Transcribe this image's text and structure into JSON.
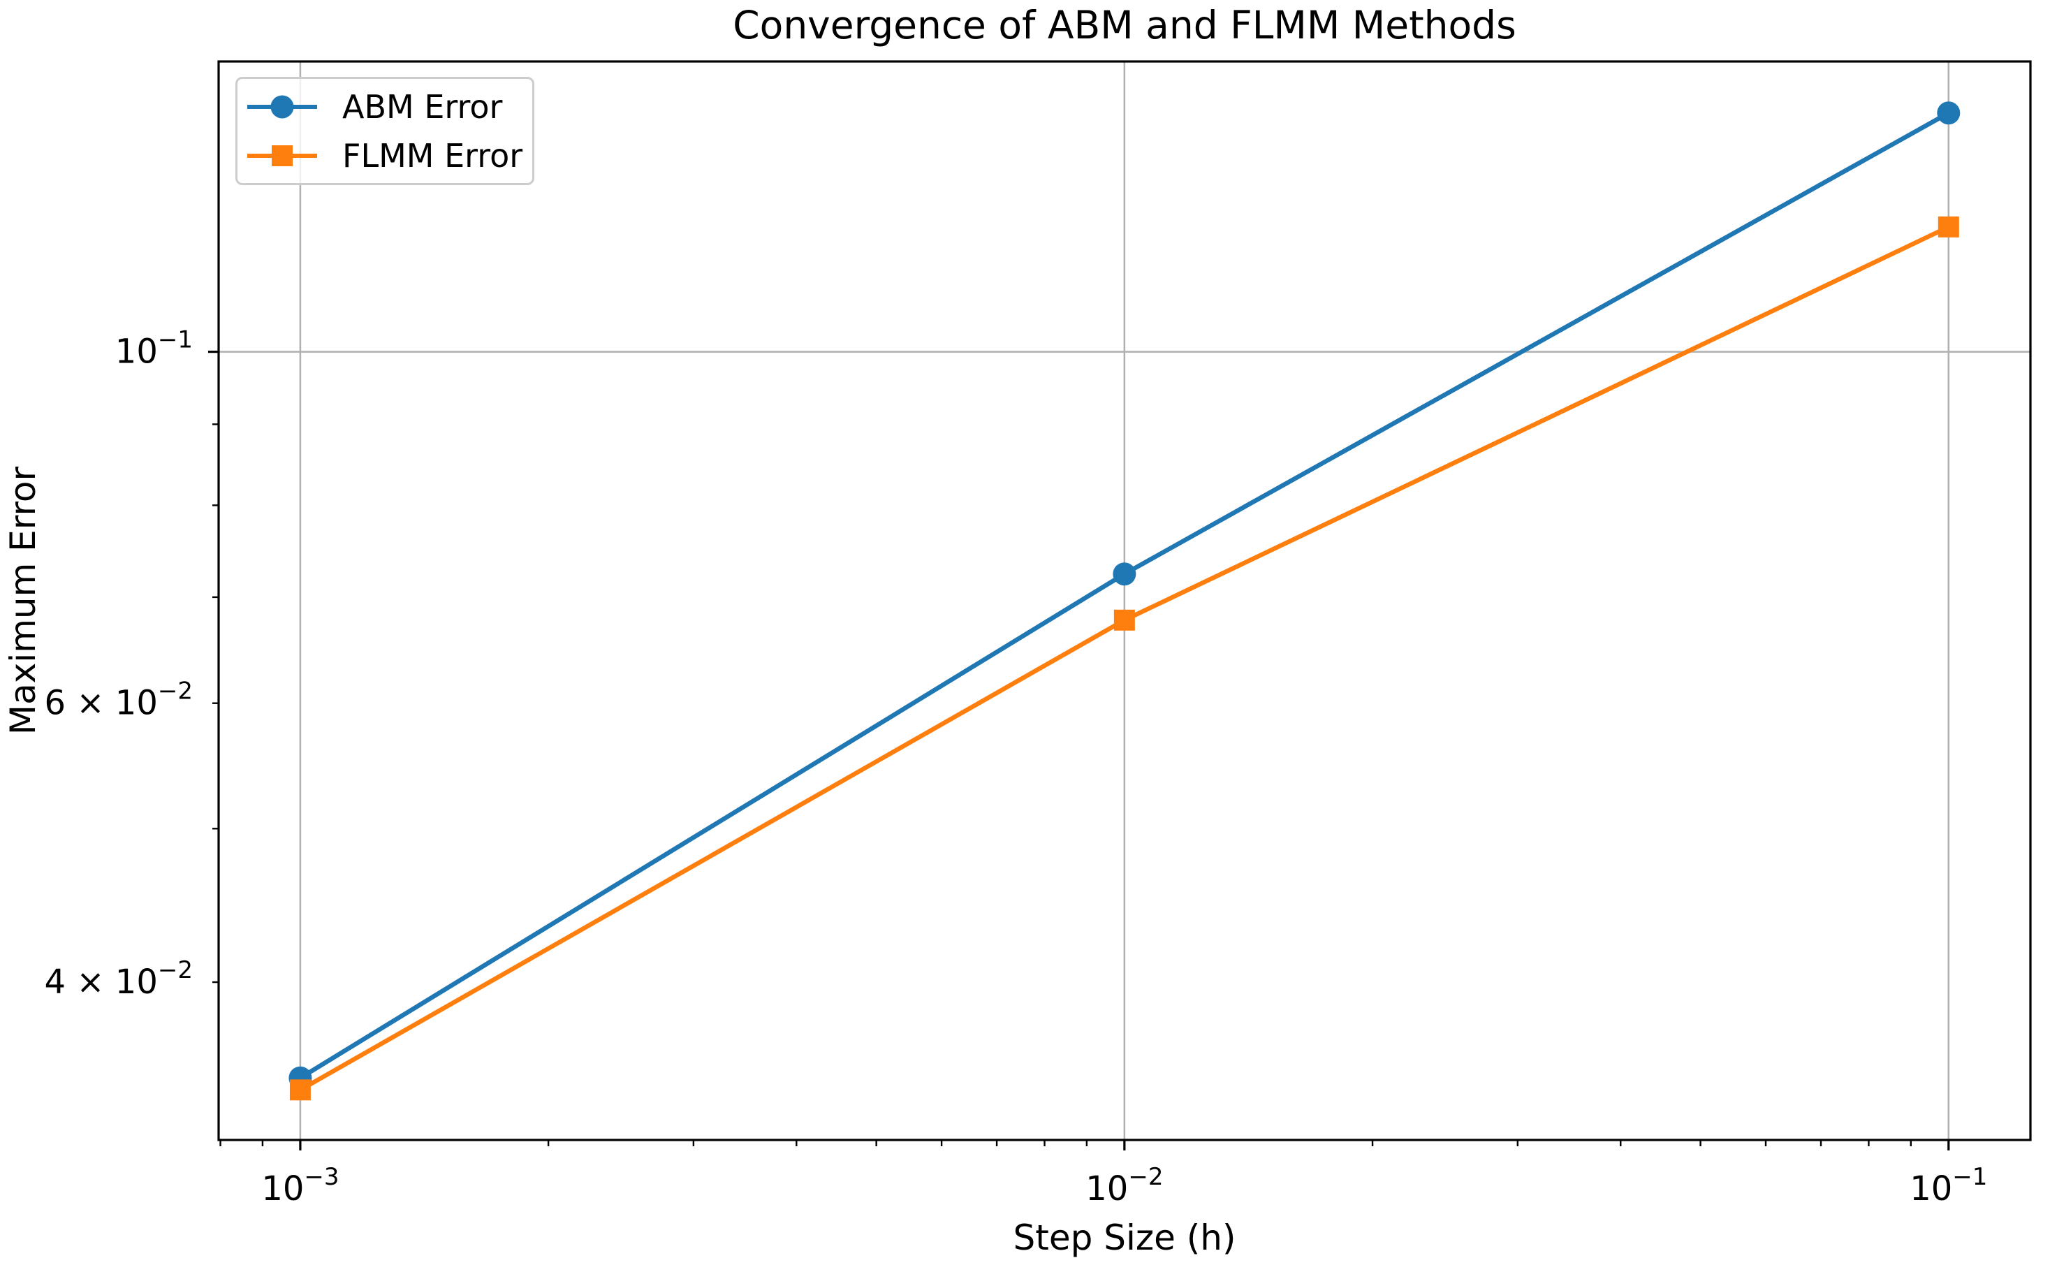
{
  "chart_data": {
    "type": "line",
    "title": "Convergence of ABM and FLMM Methods",
    "xlabel": "Step Size (h)",
    "ylabel": "Maximum Error",
    "xscale": "log",
    "yscale": "log",
    "grid": true,
    "legend_position": "upper left",
    "x": [
      0.001,
      0.01,
      0.1
    ],
    "series": [
      {
        "name": "ABM Error",
        "color": "#1f77b4",
        "marker": "circle",
        "values": [
          0.0348,
          0.0724,
          0.1415
        ]
      },
      {
        "name": "FLMM Error",
        "color": "#ff7f0e",
        "marker": "square",
        "values": [
          0.0342,
          0.0677,
          0.1199
        ]
      }
    ],
    "xlim": [
      0.000796,
      0.1257
    ],
    "ylim": [
      0.0318,
      0.1525
    ],
    "x_major_ticks": [
      {
        "value": 0.001,
        "pre": "10",
        "exp": "−3"
      },
      {
        "value": 0.01,
        "pre": "10",
        "exp": "−2"
      },
      {
        "value": 0.1,
        "pre": "10",
        "exp": "−1"
      }
    ],
    "x_minor_ticks": [
      0.0008,
      0.0009,
      0.002,
      0.003,
      0.004,
      0.005,
      0.006,
      0.007,
      0.008,
      0.009,
      0.02,
      0.03,
      0.04,
      0.05,
      0.06,
      0.07,
      0.08,
      0.09
    ],
    "y_major_ticks": [
      {
        "value": 0.1,
        "pre": "10",
        "exp": "−1"
      }
    ],
    "y_labeled_minor_ticks": [
      {
        "value": 0.06,
        "pre": "6 × 10",
        "exp": "−2"
      },
      {
        "value": 0.04,
        "pre": "4 × 10",
        "exp": "−2"
      }
    ],
    "y_minor_ticks": [
      0.04,
      0.05,
      0.06,
      0.07,
      0.08,
      0.09
    ]
  },
  "legend": {
    "items": [
      {
        "label": "ABM Error",
        "icon": "circle-marker-icon"
      },
      {
        "label": "FLMM Error",
        "icon": "square-marker-icon"
      }
    ]
  },
  "colors": {
    "abm": "#1f77b4",
    "flmm": "#ff7f0e",
    "grid": "#b0b0b0",
    "spine": "#000000",
    "legend_border": "#cccccc",
    "text": "#000000",
    "background": "#ffffff"
  }
}
